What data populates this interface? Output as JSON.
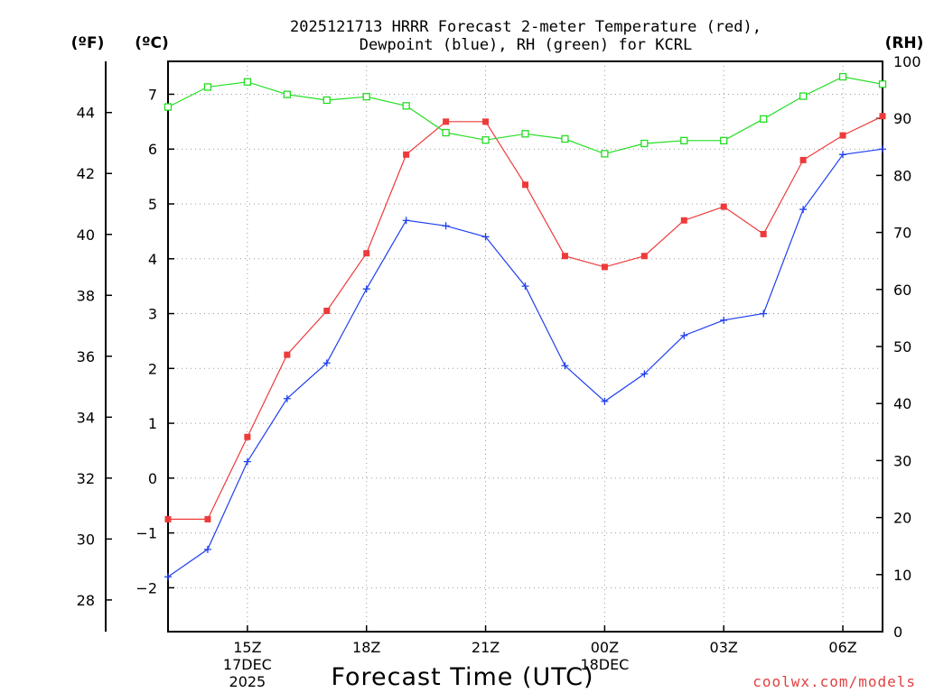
{
  "chart_data": {
    "type": "line",
    "title": "2025121713 HRRR Forecast 2-meter Temperature (red),",
    "title_line2": "Dewpoint (blue), RH (green) for KCRL",
    "xlabel": "Forecast Time (UTC)",
    "credit": "coolwx.com/models",
    "units": {
      "left_outer": "(ºF)",
      "left_inner": "(ºC)",
      "right": "(RH)"
    },
    "x_hours": [
      0,
      1,
      2,
      3,
      4,
      5,
      6,
      7,
      8,
      9,
      10,
      11,
      12,
      13,
      14,
      15,
      16,
      17,
      18
    ],
    "x_ticks": [
      {
        "hour": 2,
        "label": "15Z",
        "sub1": "17DEC",
        "sub2": "2025"
      },
      {
        "hour": 5,
        "label": "18Z"
      },
      {
        "hour": 8,
        "label": "21Z"
      },
      {
        "hour": 11,
        "label": "00Z",
        "sub1": "18DEC"
      },
      {
        "hour": 14,
        "label": "03Z"
      },
      {
        "hour": 17,
        "label": "06Z"
      }
    ],
    "ylim_c": [
      -2.8,
      7.6
    ],
    "yticks_c": [
      -2,
      -1,
      0,
      1,
      2,
      3,
      4,
      5,
      6,
      7
    ],
    "yticks_c_labels": [
      "−2",
      "−1",
      "0",
      "1",
      "2",
      "3",
      "4",
      "5",
      "6",
      "7"
    ],
    "yticks_f": [
      28,
      30,
      32,
      34,
      36,
      38,
      40,
      42,
      44
    ],
    "yticks_f_labels": [
      "28",
      "30",
      "32",
      "34",
      "36",
      "38",
      "40",
      "42",
      "44"
    ],
    "ylim_rh": [
      0,
      100
    ],
    "yticks_rh": [
      0,
      10,
      20,
      30,
      40,
      50,
      60,
      70,
      80,
      90,
      100
    ],
    "yticks_rh_labels": [
      "0",
      "10",
      "20",
      "30",
      "40",
      "50",
      "60",
      "70",
      "80",
      "90",
      "100"
    ],
    "series": [
      {
        "name": "Temperature",
        "axis": "C",
        "color": "#ee3a3a",
        "marker": "square-filled",
        "values": [
          -0.75,
          -0.75,
          0.75,
          2.25,
          3.05,
          4.1,
          5.9,
          6.5,
          6.5,
          5.35,
          4.05,
          3.85,
          4.05,
          4.7,
          4.95,
          4.45,
          5.8,
          6.25,
          6.6
        ]
      },
      {
        "name": "Dewpoint",
        "axis": "C",
        "color": "#2040ee",
        "marker": "plus",
        "values": [
          -1.8,
          -1.3,
          0.3,
          1.45,
          2.1,
          3.45,
          4.7,
          4.6,
          4.4,
          3.5,
          2.05,
          1.4,
          1.9,
          2.6,
          2.88,
          3.0,
          4.9,
          5.9,
          6.0
        ]
      },
      {
        "name": "RH",
        "axis": "RH",
        "color": "#22dd22",
        "marker": "square-open",
        "values": [
          92.0,
          95.5,
          96.4,
          94.2,
          93.2,
          93.8,
          92.2,
          87.5,
          86.2,
          87.3,
          86.4,
          83.8,
          85.6,
          86.1,
          86.1,
          89.9,
          93.9,
          97.3,
          96.0
        ]
      }
    ]
  }
}
